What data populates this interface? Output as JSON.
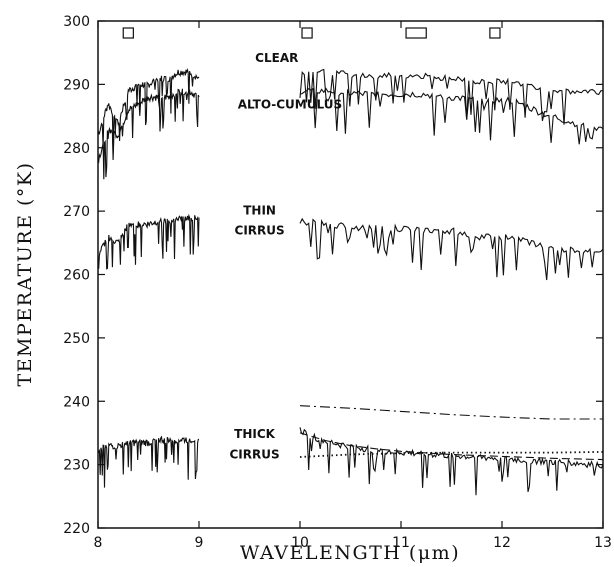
{
  "chart_data": {
    "type": "line",
    "xlabel": "WAVELENGTH (μm)",
    "ylabel": "TEMPERATURE (°K)",
    "xlim": [
      8,
      13
    ],
    "ylim": [
      220,
      300
    ],
    "x_ticks": [
      "8",
      "9",
      "10",
      "11",
      "12",
      "13"
    ],
    "y_ticks": [
      "220",
      "230",
      "240",
      "250",
      "260",
      "270",
      "280",
      "290",
      "300"
    ],
    "grid": false,
    "bands": [
      {
        "x0": 8.25,
        "x1": 8.35
      },
      {
        "x0": 10.02,
        "x1": 10.12
      },
      {
        "x0": 11.05,
        "x1": 11.25
      },
      {
        "x0": 11.88,
        "x1": 11.98
      }
    ],
    "annotations": [
      {
        "text": "CLEAR",
        "x": 9.77,
        "y": 293.5
      },
      {
        "text": "ALTO-CUMULUS",
        "x": 9.9,
        "y": 286.2
      },
      {
        "text": "THIN",
        "x": 9.6,
        "y": 269.5
      },
      {
        "text": "CIRRUS",
        "x": 9.6,
        "y": 266.3
      },
      {
        "text": "THICK",
        "x": 9.55,
        "y": 234.2
      },
      {
        "text": "CIRRUS",
        "x": 9.55,
        "y": 231.0
      }
    ],
    "series": [
      {
        "key": "clear",
        "style": "solid",
        "jagged": true,
        "segments": [
          {
            "x": [
              8.0,
              8.1,
              8.2,
              8.3,
              8.4,
              8.5,
              8.6,
              8.7,
              8.8,
              8.9,
              9.0
            ],
            "y": [
              282,
              287,
              284,
              289,
              290,
              290,
              291,
              291,
              292,
              292,
              291
            ]
          },
          {
            "x": [
              10.0,
              10.3,
              10.6,
              10.9,
              11.2,
              11.5,
              11.8,
              12.1,
              12.4,
              12.7,
              13.0
            ],
            "y": [
              292,
              292,
              291.5,
              291.5,
              291.5,
              291,
              290.5,
              290.5,
              289.5,
              289,
              289
            ]
          }
        ]
      },
      {
        "key": "alto_cumulus",
        "style": "solid",
        "jagged": true,
        "segments": [
          {
            "x": [
              8.0,
              8.1,
              8.2,
              8.3,
              8.4,
              8.5,
              8.6,
              8.7,
              8.8,
              8.9,
              9.0
            ],
            "y": [
              278,
              283,
              282,
              286,
              287,
              288,
              288,
              288,
              289,
              289,
              288
            ]
          },
          {
            "x": [
              10.0,
              10.3,
              10.6,
              10.9,
              11.2,
              11.5,
              11.8,
              12.1,
              12.4,
              12.7,
              13.0
            ],
            "y": [
              289,
              289,
              288.5,
              288.5,
              288.5,
              288,
              287.5,
              287.5,
              285.5,
              284,
              283
            ]
          }
        ]
      },
      {
        "key": "thin_cirrus",
        "style": "solid",
        "jagged": true,
        "segments": [
          {
            "x": [
              8.0,
              8.1,
              8.2,
              8.3,
              8.4,
              8.5,
              8.6,
              8.7,
              8.8,
              8.9,
              9.0
            ],
            "y": [
              263,
              266,
              265,
              268,
              268,
              268,
              268.5,
              268.5,
              269,
              269,
              269
            ]
          },
          {
            "x": [
              10.0,
              10.3,
              10.6,
              10.9,
              11.2,
              11.5,
              11.8,
              12.1,
              12.4,
              12.7,
              13.0
            ],
            "y": [
              268.5,
              268,
              267.5,
              267.5,
              267,
              267,
              266,
              266,
              264.5,
              264,
              264
            ]
          }
        ]
      },
      {
        "key": "thick_cirrus",
        "style": "solid",
        "jagged": true,
        "segments": [
          {
            "x": [
              8.0,
              8.1,
              8.2,
              8.3,
              8.4,
              8.5,
              8.6,
              8.7,
              8.8,
              8.9,
              9.0
            ],
            "y": [
              232.5,
              233,
              233,
              233.5,
              233.5,
              233.5,
              234,
              234,
              234,
              234,
              234
            ]
          },
          {
            "x": [
              10.0,
              10.2,
              10.4,
              10.6,
              10.8,
              11.0,
              11.2,
              11.4,
              11.6,
              11.8,
              12.0,
              12.2,
              12.4,
              12.6,
              12.8,
              13.0
            ],
            "y": [
              235.5,
              234,
              233.2,
              232.7,
              232.3,
              232,
              231.8,
              231.6,
              231.4,
              231.2,
              231,
              230.8,
              230.6,
              230.4,
              230.2,
              230
            ]
          }
        ]
      },
      {
        "key": "dashdot_model",
        "style": "dashdot",
        "jagged": false,
        "segments": [
          {
            "x": [
              10.0,
              10.5,
              11.0,
              11.5,
              12.0,
              12.5,
              13.0
            ],
            "y": [
              239.3,
              238.9,
              238.4,
              237.9,
              237.5,
              237.2,
              237.2
            ]
          }
        ]
      },
      {
        "key": "dashed_model",
        "style": "dashed",
        "jagged": false,
        "segments": [
          {
            "x": [
              10.0,
              10.25,
              10.5,
              10.75,
              11.0,
              11.5,
              12.0,
              12.5,
              13.0
            ],
            "y": [
              235.0,
              233.8,
              233.0,
              232.5,
              232.1,
              231.6,
              231.3,
              231.0,
              230.8
            ]
          }
        ]
      },
      {
        "key": "dotted_model",
        "style": "dotted",
        "jagged": false,
        "segments": [
          {
            "x": [
              10.0,
              10.5,
              11.0,
              11.5,
              12.0,
              12.5,
              13.0
            ],
            "y": [
              231.2,
              231.6,
              231.8,
              231.9,
              231.9,
              231.9,
              232.0
            ]
          }
        ]
      }
    ]
  }
}
